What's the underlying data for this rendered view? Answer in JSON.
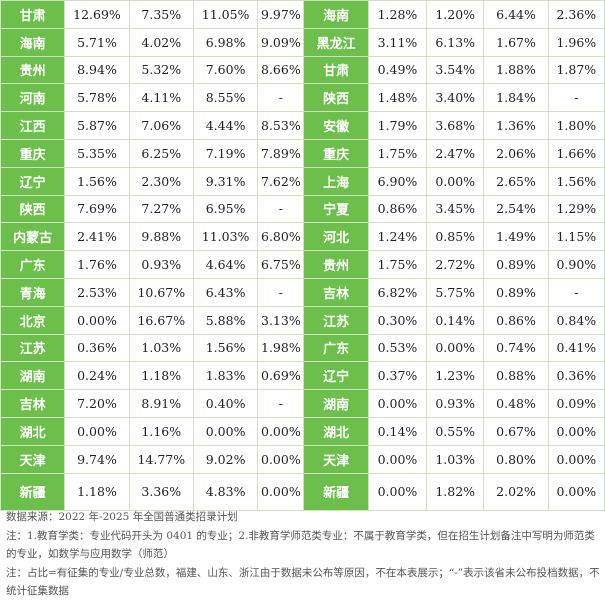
{
  "rows": [
    {
      "p1": "甘肃",
      "a": "12.69%",
      "b": "7.35%",
      "c": "11.05%",
      "d": "9.97%",
      "p2": "海南",
      "e": "1.28%",
      "f": "1.20%",
      "g": "6.44%",
      "h": "2.36%"
    },
    {
      "p1": "海南",
      "a": "5.71%",
      "b": "4.02%",
      "c": "6.98%",
      "d": "9.09%",
      "p2": "黑龙江",
      "e": "3.11%",
      "f": "6.13%",
      "g": "1.67%",
      "h": "1.96%"
    },
    {
      "p1": "贵州",
      "a": "8.94%",
      "b": "5.32%",
      "c": "7.60%",
      "d": "8.66%",
      "p2": "甘肃",
      "e": "0.49%",
      "f": "3.54%",
      "g": "1.88%",
      "h": "1.87%"
    },
    {
      "p1": "河南",
      "a": "5.78%",
      "b": "4.11%",
      "c": "8.55%",
      "d": "-",
      "p2": "陕西",
      "e": "1.48%",
      "f": "3.40%",
      "g": "1.84%",
      "h": "-"
    },
    {
      "p1": "江西",
      "a": "5.87%",
      "b": "7.06%",
      "c": "4.44%",
      "d": "8.53%",
      "p2": "安徽",
      "e": "1.79%",
      "f": "3.68%",
      "g": "1.36%",
      "h": "1.80%"
    },
    {
      "p1": "重庆",
      "a": "5.35%",
      "b": "6.25%",
      "c": "7.19%",
      "d": "7.89%",
      "p2": "重庆",
      "e": "1.75%",
      "f": "2.47%",
      "g": "2.06%",
      "h": "1.66%"
    },
    {
      "p1": "辽宁",
      "a": "1.56%",
      "b": "2.30%",
      "c": "9.31%",
      "d": "7.62%",
      "p2": "上海",
      "e": "6.90%",
      "f": "0.00%",
      "g": "2.65%",
      "h": "1.56%"
    },
    {
      "p1": "陕西",
      "a": "7.69%",
      "b": "7.27%",
      "c": "6.95%",
      "d": "-",
      "p2": "宁夏",
      "e": "0.86%",
      "f": "3.45%",
      "g": "2.54%",
      "h": "1.29%"
    },
    {
      "p1": "内蒙古",
      "a": "2.41%",
      "b": "9.88%",
      "c": "11.03%",
      "d": "6.80%",
      "p2": "河北",
      "e": "1.24%",
      "f": "0.85%",
      "g": "1.49%",
      "h": "1.15%"
    },
    {
      "p1": "广东",
      "a": "1.76%",
      "b": "0.93%",
      "c": "4.64%",
      "d": "6.75%",
      "p2": "贵州",
      "e": "1.75%",
      "f": "2.72%",
      "g": "0.89%",
      "h": "0.90%"
    },
    {
      "p1": "青海",
      "a": "2.53%",
      "b": "10.67%",
      "c": "6.43%",
      "d": "-",
      "p2": "吉林",
      "e": "6.82%",
      "f": "5.75%",
      "g": "0.89%",
      "h": "-"
    },
    {
      "p1": "北京",
      "a": "0.00%",
      "b": "16.67%",
      "c": "5.88%",
      "d": "3.13%",
      "p2": "江苏",
      "e": "0.30%",
      "f": "0.14%",
      "g": "0.86%",
      "h": "0.84%"
    },
    {
      "p1": "江苏",
      "a": "0.36%",
      "b": "1.03%",
      "c": "1.56%",
      "d": "1.98%",
      "p2": "广东",
      "e": "0.53%",
      "f": "0.00%",
      "g": "0.74%",
      "h": "0.41%"
    },
    {
      "p1": "湖南",
      "a": "0.24%",
      "b": "1.18%",
      "c": "1.83%",
      "d": "0.69%",
      "p2": "辽宁",
      "e": "0.37%",
      "f": "1.23%",
      "g": "0.88%",
      "h": "0.36%"
    },
    {
      "p1": "吉林",
      "a": "7.20%",
      "b": "8.91%",
      "c": "0.40%",
      "d": "-",
      "p2": "湖南",
      "e": "0.00%",
      "f": "0.93%",
      "g": "0.48%",
      "h": "0.09%"
    },
    {
      "p1": "湖北",
      "a": "0.00%",
      "b": "1.16%",
      "c": "0.00%",
      "d": "0.00%",
      "p2": "湖北",
      "e": "0.14%",
      "f": "0.55%",
      "g": "0.67%",
      "h": "0.00%"
    },
    {
      "p1": "天津",
      "a": "9.74%",
      "b": "14.77%",
      "c": "9.02%",
      "d": "0.00%",
      "p2": "天津",
      "e": "0.00%",
      "f": "1.03%",
      "g": "0.80%",
      "h": "0.00%"
    },
    {
      "p1": "新疆",
      "a": "1.18%",
      "b": "3.36%",
      "c": "4.83%",
      "d": "0.00%",
      "p2": "新疆",
      "e": "0.00%",
      "f": "1.82%",
      "g": "2.02%",
      "h": "0.00%"
    }
  ],
  "notes": {
    "source": "数据来源：2022 年-2025 年全国普通类招录计划",
    "note1": "注：1.教育学类：专业代码开头为 0401 的专业；2.非教育学师范类专业：不属于教育学类，但在招生计划备注中写明为师范类的专业，如数学与应用数学（师范）",
    "note2": "注：占比=有征集的专业/专业总数，福建、山东、浙江由于数据未公布等原因，不在本表展示；“-”表示该省未公布投档数据，不统计征集数据"
  },
  "colors": {
    "province_cell": "#6bbf4a",
    "border": "#cfe0c3"
  }
}
